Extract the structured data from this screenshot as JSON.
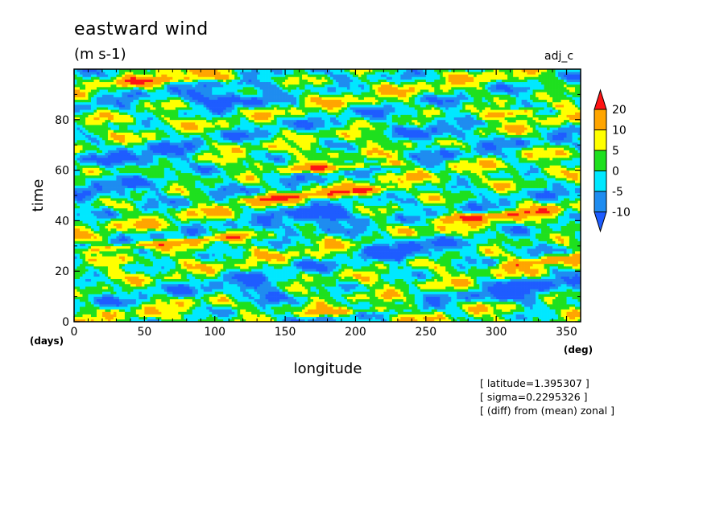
{
  "chart_data": {
    "type": "heatmap",
    "title": "eastward wind",
    "units": "(m s-1)",
    "run_label": "adj_c",
    "xlabel": "longitude",
    "xunit": "(deg)",
    "ylabel": "time",
    "yunit": "(days)",
    "xlim": [
      0,
      360
    ],
    "ylim": [
      0,
      100
    ],
    "xticks": [
      0,
      50,
      100,
      150,
      200,
      250,
      300,
      350
    ],
    "yticks": [
      0,
      20,
      40,
      60,
      80
    ],
    "colorbar": {
      "levels": [
        -10,
        -5,
        0,
        5,
        10,
        20
      ],
      "labels": [
        "20",
        "10",
        "5",
        "0",
        "-5",
        "-10"
      ],
      "colors": [
        "#1e5cff",
        "#1e8cf0",
        "#00e8ff",
        "#1ee01e",
        "#ffff00",
        "#ffa500",
        "#ff1414"
      ]
    },
    "field_patterns": {
      "eastward_bands": [
        {
          "lon0": 0,
          "t0": 28,
          "lon1": 120,
          "t1": 34,
          "value": 15
        },
        {
          "lon0": 150,
          "t0": 60,
          "lon1": 240,
          "t1": 63,
          "value": 14
        },
        {
          "lon0": 120,
          "t0": 48,
          "lon1": 230,
          "t1": 53,
          "value": 12
        },
        {
          "lon0": 160,
          "t0": 3,
          "lon1": 240,
          "t1": 6,
          "value": 13
        },
        {
          "lon0": 250,
          "t0": 40,
          "lon1": 340,
          "t1": 44,
          "value": 12
        },
        {
          "lon0": 280,
          "t0": 80,
          "lon1": 350,
          "t1": 86,
          "value": 11
        },
        {
          "lon0": 300,
          "t0": 22,
          "lon1": 360,
          "t1": 26,
          "value": 12
        },
        {
          "lon0": 30,
          "t0": 95,
          "lon1": 120,
          "t1": 97,
          "value": 10
        }
      ],
      "westward_patches": [
        {
          "lon": 110,
          "t": 88,
          "value": -12
        },
        {
          "lon": 230,
          "t": 30,
          "value": -11
        },
        {
          "lon": 170,
          "t": 42,
          "value": -12
        },
        {
          "lon": 60,
          "t": 64,
          "value": -10
        },
        {
          "lon": 320,
          "t": 12,
          "value": -11
        },
        {
          "lon": 20,
          "t": 55,
          "value": -10
        },
        {
          "lon": 260,
          "t": 75,
          "value": -11
        },
        {
          "lon": 130,
          "t": 12,
          "value": -10
        }
      ]
    }
  },
  "annotations": [
    "[ latitude=1.395307 ]",
    "[ sigma=0.2295326 ]",
    "[ (diff) from (mean) zonal ]"
  ]
}
